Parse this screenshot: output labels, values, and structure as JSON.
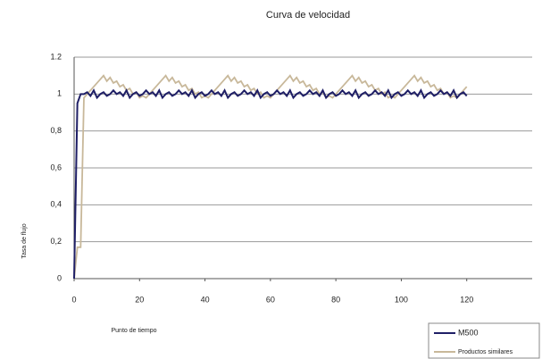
{
  "chart_data": {
    "type": "line",
    "title": "Curva de velocidad",
    "xlabel": "Punto de tiempo",
    "ylabel": "Tasa de flujo",
    "x": [
      0,
      1,
      2,
      3,
      4,
      5,
      6,
      7,
      8,
      9,
      10,
      11,
      12,
      13,
      14,
      15,
      16,
      17,
      18,
      19,
      20,
      21,
      22,
      23,
      24,
      25,
      26,
      27,
      28,
      29,
      30,
      31,
      32,
      33,
      34,
      35,
      36,
      37,
      38,
      39,
      40,
      41,
      42,
      43,
      44,
      45,
      46,
      47,
      48,
      49,
      50,
      51,
      52,
      53,
      54,
      55,
      56,
      57,
      58,
      59,
      60,
      61,
      62,
      63,
      64,
      65,
      66,
      67,
      68,
      69,
      70,
      71,
      72,
      73,
      74,
      75,
      76,
      77,
      78,
      79,
      80,
      81,
      82,
      83,
      84,
      85,
      86,
      87,
      88,
      89,
      90,
      91,
      92,
      93,
      94,
      95,
      96,
      97,
      98,
      99,
      100,
      101,
      102,
      103,
      104,
      105,
      106,
      107,
      108,
      109,
      110,
      111,
      112,
      113,
      114,
      115,
      116,
      117,
      118,
      119,
      120
    ],
    "series": [
      {
        "name": "M500",
        "color": "#1f1f66",
        "values": [
          0,
          0.95,
          1.0,
          1.0,
          1.01,
          0.99,
          1.02,
          0.98,
          1.0,
          1.01,
          0.99,
          1.0,
          1.02,
          1.0,
          1.01,
          0.99,
          1.02,
          0.98,
          1.0,
          1.01,
          0.99,
          1.0,
          1.02,
          1.0,
          1.01,
          0.99,
          1.02,
          0.98,
          1.0,
          1.01,
          0.99,
          1.0,
          1.02,
          1.0,
          1.01,
          0.99,
          1.02,
          0.98,
          1.0,
          1.01,
          0.99,
          1.0,
          1.02,
          1.0,
          1.01,
          0.99,
          1.02,
          0.98,
          1.0,
          1.01,
          0.99,
          1.0,
          1.02,
          1.0,
          1.01,
          0.99,
          1.02,
          0.98,
          1.0,
          1.01,
          0.99,
          1.0,
          1.02,
          1.0,
          1.01,
          0.99,
          1.02,
          0.98,
          1.0,
          1.01,
          0.99,
          1.0,
          1.02,
          1.0,
          1.01,
          0.99,
          1.02,
          0.98,
          1.0,
          1.01,
          0.99,
          1.0,
          1.02,
          1.0,
          1.01,
          0.99,
          1.02,
          0.98,
          1.0,
          1.01,
          0.99,
          1.0,
          1.02,
          1.0,
          1.01,
          0.99,
          1.02,
          0.98,
          1.0,
          1.01,
          0.99,
          1.0,
          1.02,
          1.0,
          1.01,
          0.99,
          1.02,
          0.98,
          1.0,
          1.01,
          0.99,
          1.0,
          1.02,
          1.0,
          1.01,
          0.99,
          1.02,
          0.98,
          1.0,
          1.01,
          0.99
        ]
      },
      {
        "name": "Productos similares",
        "color": "#c8b89a",
        "values": [
          0,
          0.17,
          0.17,
          0.98,
          1.0,
          1.02,
          1.04,
          1.06,
          1.08,
          1.1,
          1.07,
          1.09,
          1.06,
          1.07,
          1.04,
          1.05,
          1.02,
          1.03,
          1.0,
          1.01,
          0.98,
          0.99,
          0.98,
          1.0,
          1.02,
          1.04,
          1.06,
          1.08,
          1.1,
          1.07,
          1.09,
          1.06,
          1.07,
          1.04,
          1.05,
          1.02,
          1.03,
          1.0,
          1.01,
          0.98,
          0.99,
          0.98,
          1.0,
          1.02,
          1.04,
          1.06,
          1.08,
          1.1,
          1.07,
          1.09,
          1.06,
          1.07,
          1.04,
          1.05,
          1.02,
          1.03,
          1.0,
          1.01,
          0.98,
          0.99,
          0.98,
          1.0,
          1.02,
          1.04,
          1.06,
          1.08,
          1.1,
          1.07,
          1.09,
          1.06,
          1.07,
          1.04,
          1.05,
          1.02,
          1.03,
          1.0,
          1.01,
          0.98,
          0.99,
          0.98,
          1.0,
          1.02,
          1.04,
          1.06,
          1.08,
          1.1,
          1.07,
          1.09,
          1.06,
          1.07,
          1.04,
          1.05,
          1.02,
          1.03,
          1.0,
          1.01,
          0.98,
          0.99,
          0.98,
          1.0,
          1.02,
          1.04,
          1.06,
          1.08,
          1.1,
          1.07,
          1.09,
          1.06,
          1.07,
          1.04,
          1.05,
          1.02,
          1.03,
          1.0,
          1.01,
          0.98,
          0.99,
          0.98,
          1.0,
          1.02,
          1.04
        ]
      }
    ],
    "xlim": [
      0,
      140
    ],
    "xticks": [
      0,
      20,
      40,
      60,
      80,
      100,
      120
    ],
    "ylim": [
      0,
      1.2
    ],
    "yticks": [
      0,
      {
        "value": 0.2,
        "label": "0,2"
      },
      {
        "value": 0.4,
        "label": "0,4"
      },
      {
        "value": 0.6,
        "label": "0,6"
      },
      {
        "value": 0.8,
        "label": "0,8"
      },
      1,
      1.2
    ],
    "grid": true,
    "legend": "bottom-right"
  }
}
